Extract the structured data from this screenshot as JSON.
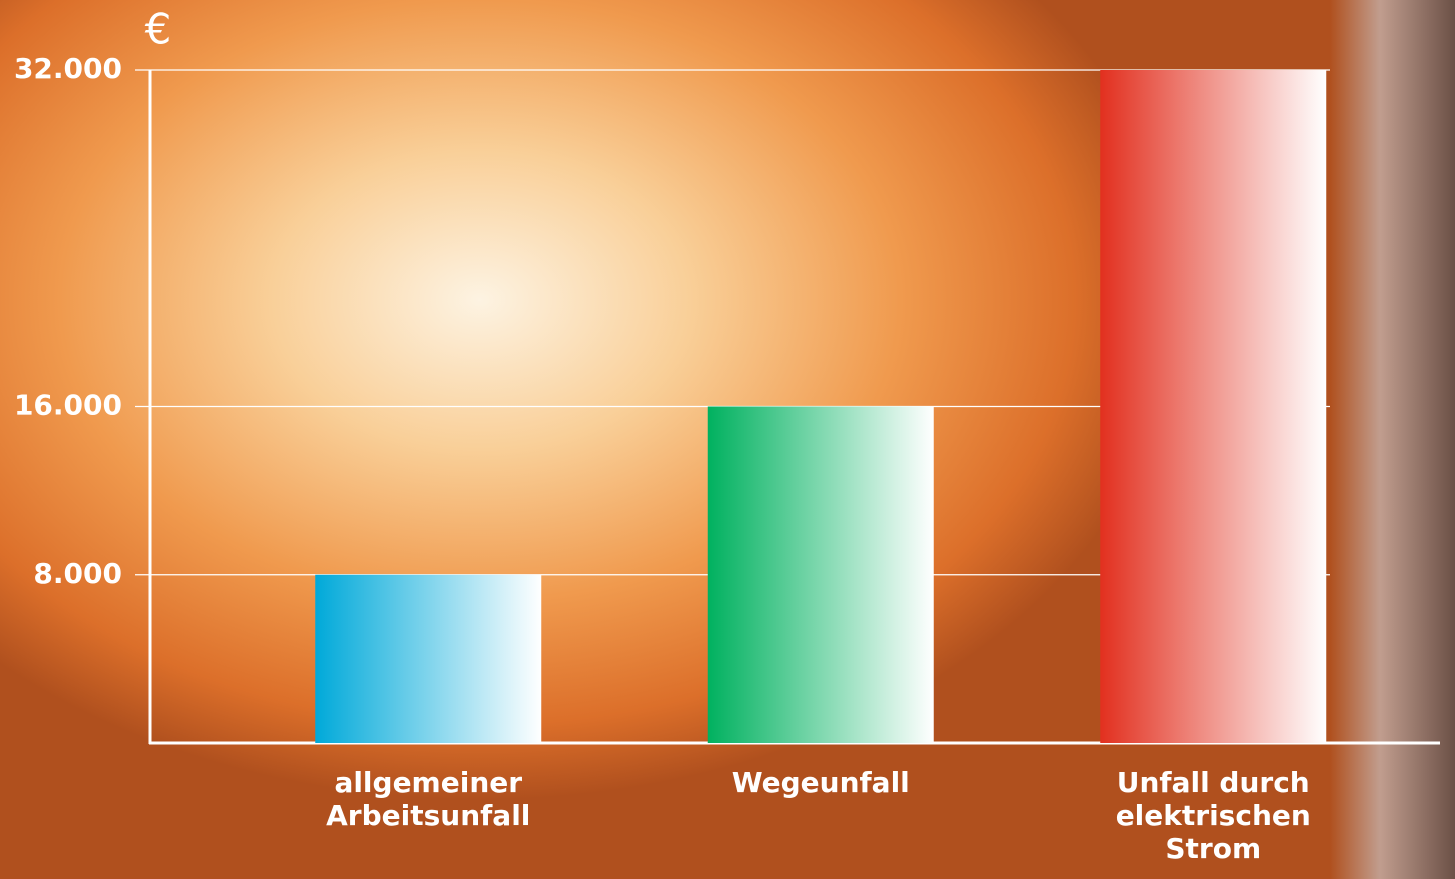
{
  "chart_data": {
    "type": "bar",
    "unit": "€",
    "categories": [
      "allgemeiner Arbeitsunfall",
      "Wegeunfall",
      "Unfall durch elektrischen Strom"
    ],
    "values": [
      8000,
      16000,
      32000
    ],
    "colors": [
      "#00a9d9",
      "#00b15f",
      "#e2301f"
    ],
    "ylim": [
      0,
      32000
    ],
    "yticks": [
      {
        "value": 8000,
        "label": "8.000"
      },
      {
        "value": 16000,
        "label": "16.000"
      },
      {
        "value": 32000,
        "label": "32.000"
      }
    ],
    "grid": true
  }
}
